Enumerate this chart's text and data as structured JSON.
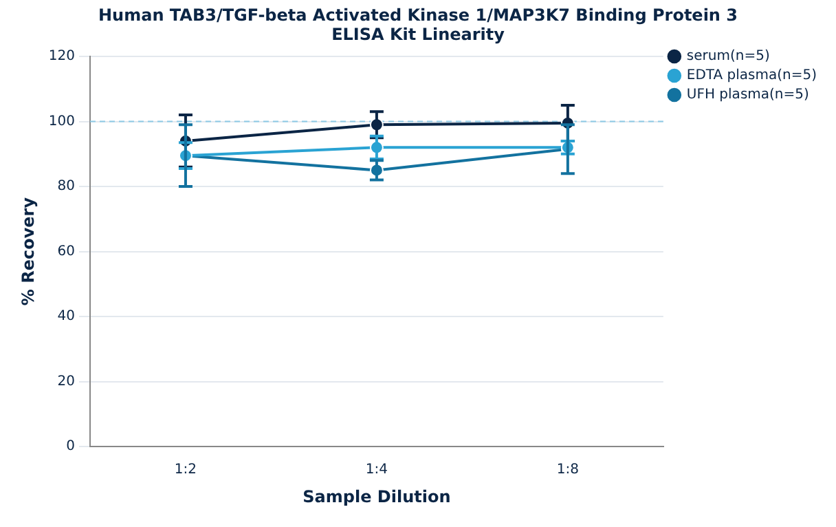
{
  "chart_data": {
    "type": "line",
    "title": "Human TAB3/TGF-beta Activated Kinase 1/MAP3K7 Binding Protein 3 ELISA Kit Linearity",
    "xlabel": "Sample Dilution",
    "ylabel": "% Recovery",
    "categories": [
      "1:2",
      "1:4",
      "1:8"
    ],
    "series": [
      {
        "name": "serum(n=5)",
        "color": "#0b2545",
        "values": [
          94,
          99,
          99.5
        ],
        "errors": [
          8,
          4,
          5.5
        ]
      },
      {
        "name": "EDTA plasma(n=5)",
        "color": "#2aa3d3",
        "values": [
          89.5,
          92,
          92
        ],
        "errors": [
          4,
          3.5,
          2
        ]
      },
      {
        "name": "UFH plasma(n=5)",
        "color": "#13729f",
        "values": [
          89.5,
          85,
          91.5
        ],
        "errors": [
          9.5,
          3,
          7.5
        ]
      }
    ],
    "ylim": [
      0,
      120
    ],
    "yticks": [
      0,
      20,
      40,
      60,
      80,
      100,
      120
    ],
    "grid": "y",
    "legend": "top right",
    "marker": "circle",
    "line_style": "solid",
    "ref_lines": [
      {
        "axis": "y",
        "value": 100,
        "color": "#8ecae6",
        "line_style": "dashed"
      }
    ]
  }
}
